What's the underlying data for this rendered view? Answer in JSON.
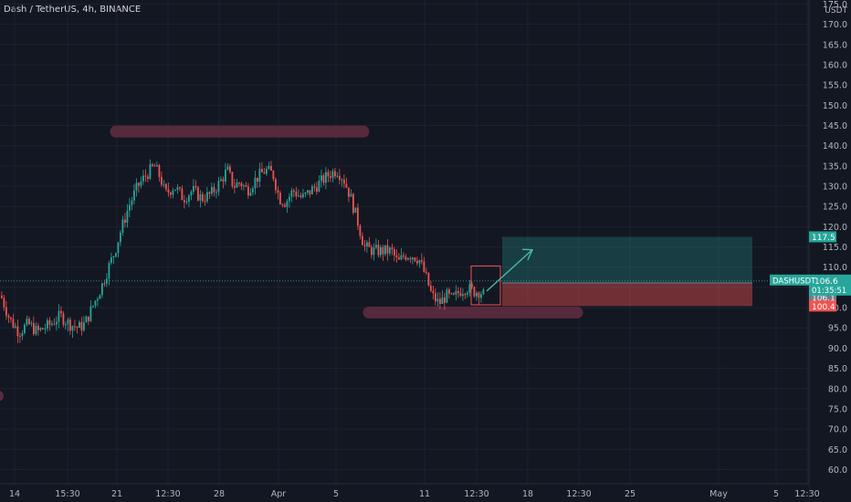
{
  "header": {
    "title": "Dash / TetherUS, 4h, BINANCE"
  },
  "colors": {
    "background": "#131722",
    "grid": "#1e2230",
    "up": "#26a69a",
    "down": "#ef5350",
    "annotation": "#5a2a3e",
    "target_fill": "#26a69a",
    "stop_fill": "#ef5350"
  },
  "chart_data": {
    "type": "candlestick",
    "symbol": "DASHUSDT",
    "y_unit": "USDT",
    "ylim": [
      56.5,
      176
    ],
    "y_ticks": [
      "60.0",
      "65.0",
      "70.0",
      "75.0",
      "80.0",
      "85.0",
      "90.0",
      "95.0",
      "100.0",
      "105.0",
      "110.0",
      "115.0",
      "120.0",
      "125.0",
      "130.0",
      "135.0",
      "140.0",
      "145.0",
      "150.0",
      "155.0",
      "160.0",
      "165.0",
      "170.0",
      "175.0"
    ],
    "x_tick_labels": [
      "14",
      "15:30",
      "21",
      "12:30",
      "28",
      "Apr",
      "5",
      "11",
      "12:30",
      "18",
      "12:30",
      "25",
      "May",
      "5",
      "12:30"
    ],
    "grid": true,
    "price_path": [
      [
        0,
        103
      ],
      [
        10,
        97
      ],
      [
        20,
        94
      ],
      [
        30,
        96
      ],
      [
        40,
        94
      ],
      [
        55,
        96
      ],
      [
        65,
        98
      ],
      [
        75,
        96
      ],
      [
        85,
        95
      ],
      [
        92,
        96
      ],
      [
        100,
        100
      ],
      [
        110,
        105
      ],
      [
        118,
        110
      ],
      [
        125,
        114
      ],
      [
        130,
        118
      ],
      [
        140,
        125
      ],
      [
        150,
        130
      ],
      [
        160,
        133
      ],
      [
        168,
        135
      ],
      [
        175,
        132
      ],
      [
        180,
        128
      ],
      [
        190,
        130
      ],
      [
        200,
        127
      ],
      [
        210,
        129
      ],
      [
        220,
        127
      ],
      [
        230,
        128
      ],
      [
        240,
        131
      ],
      [
        248,
        134
      ],
      [
        255,
        130
      ],
      [
        262,
        131
      ],
      [
        270,
        129
      ],
      [
        280,
        132
      ],
      [
        290,
        134
      ],
      [
        298,
        133
      ],
      [
        305,
        127
      ],
      [
        312,
        126
      ],
      [
        320,
        129
      ],
      [
        330,
        127
      ],
      [
        340,
        129
      ],
      [
        350,
        131
      ],
      [
        360,
        133
      ],
      [
        368,
        134
      ],
      [
        375,
        132
      ],
      [
        382,
        128
      ],
      [
        390,
        122
      ],
      [
        398,
        115
      ],
      [
        408,
        114
      ],
      [
        418,
        114
      ],
      [
        428,
        114
      ],
      [
        435,
        111
      ],
      [
        442,
        113
      ],
      [
        450,
        113
      ],
      [
        458,
        112
      ],
      [
        465,
        108
      ],
      [
        472,
        103
      ],
      [
        480,
        101
      ],
      [
        488,
        103
      ],
      [
        495,
        102
      ],
      [
        502,
        104
      ],
      [
        510,
        105
      ],
      [
        518,
        104
      ],
      [
        525,
        104
      ],
      [
        530,
        103
      ]
    ],
    "last_price": "106.6",
    "last_price_label": "DASHUSDT",
    "countdown": "01:35:51",
    "price_tags": [
      {
        "value": "117.5",
        "color": "#26a69a"
      },
      {
        "value": "106.1",
        "color": "#787b86"
      },
      {
        "value": "100.4",
        "color": "#ef5350"
      }
    ],
    "position": {
      "entry": 106.1,
      "target": 117.5,
      "stop": 100.4
    },
    "resistance_zone": 143.5,
    "support_zone": 98.8
  }
}
